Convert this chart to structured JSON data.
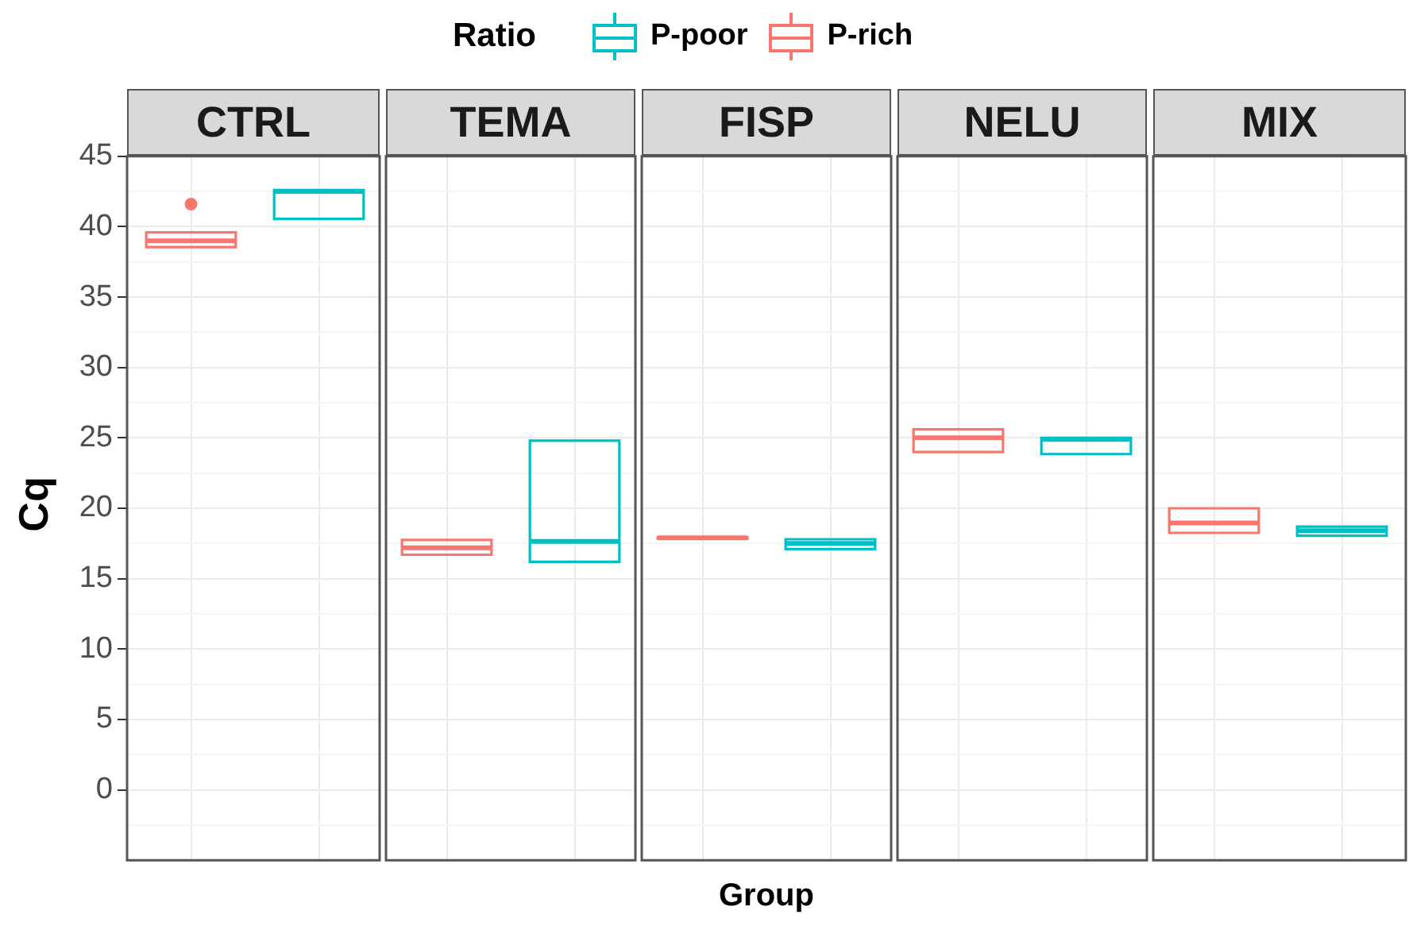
{
  "chart_data": {
    "type": "box",
    "ylabel": "Cq",
    "xlabel": "Group",
    "legend_title": "Ratio",
    "legend": "top",
    "annotations": [
      "CTRL",
      "TEMA",
      "FISP",
      "NELU",
      "MIX"
    ],
    "categories": [
      null,
      null,
      null,
      null,
      null,
      null,
      null,
      null,
      null,
      null
    ],
    "ylim": [
      -5,
      45
    ],
    "yticks": [
      {
        "value": -2.5,
        "label": null
      },
      0,
      {
        "value": 2.5,
        "label": null
      },
      5,
      {
        "value": 7.5,
        "label": null
      },
      10,
      {
        "value": 12.5,
        "label": null
      },
      15,
      {
        "value": 17.5,
        "label": null
      },
      20,
      {
        "value": 22.5,
        "label": null
      },
      25,
      {
        "value": 27.5,
        "label": null
      },
      30,
      {
        "value": 32.5,
        "label": null
      },
      35,
      {
        "value": 37.5,
        "label": null
      },
      40,
      {
        "value": 42.5,
        "label": null
      },
      45
    ],
    "grid": true,
    "series": [
      {
        "name": "P-poor",
        "color": "#00bfc4",
        "boxes": [
          null,
          {
            "low": 40.55,
            "q1": 40.55,
            "median": 42.5,
            "q3": 42.6,
            "high": 42.6
          },
          null,
          {
            "low": 16.2,
            "q1": 16.2,
            "median": 17.65,
            "q3": 24.8,
            "high": 24.8
          },
          null,
          {
            "low": 17.1,
            "q1": 17.1,
            "median": 17.5,
            "q3": 17.8,
            "high": 17.8
          },
          null,
          {
            "low": 23.85,
            "q1": 23.85,
            "median": 24.9,
            "q3": 25.0,
            "high": 25.0
          },
          null,
          {
            "low": 18.05,
            "q1": 18.05,
            "median": 18.4,
            "q3": 18.7,
            "high": 18.7
          }
        ]
      },
      {
        "name": "P-rich",
        "color": "#f8766d",
        "boxes": [
          {
            "low": 38.55,
            "q1": 38.55,
            "median": 39.0,
            "q3": 39.6,
            "high": 39.6,
            "outliers": [
              41.6
            ]
          },
          null,
          {
            "low": 16.7,
            "q1": 16.7,
            "median": 17.2,
            "q3": 17.75,
            "high": 17.75
          },
          null,
          {
            "low": 17.85,
            "q1": 17.85,
            "median": 17.9,
            "q3": 17.95,
            "high": 17.95
          },
          null,
          {
            "low": 24.0,
            "q1": 24.0,
            "median": 25.0,
            "q3": 25.6,
            "high": 25.6
          },
          null,
          {
            "low": 18.25,
            "q1": 18.25,
            "median": 18.95,
            "q3": 20.0,
            "high": 20.0
          },
          null
        ]
      }
    ]
  }
}
